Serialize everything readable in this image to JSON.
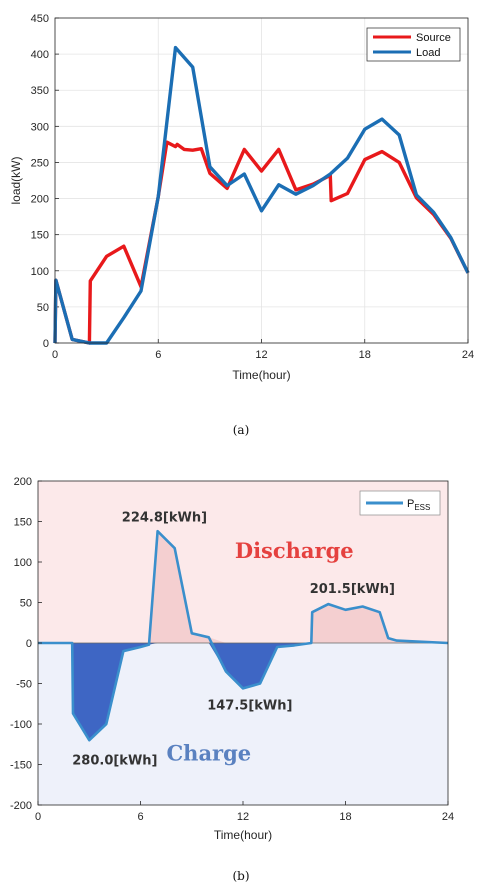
{
  "chart_data": [
    {
      "type": "line",
      "title": "",
      "xlabel": "Time(hour)",
      "ylabel": "load(kW)",
      "xlim": [
        0,
        24
      ],
      "ylim": [
        0,
        450
      ],
      "xticks": [
        "0",
        "6",
        "12",
        "18",
        "24"
      ],
      "yticks": [
        "0",
        "50",
        "100",
        "150",
        "200",
        "250",
        "300",
        "350",
        "400",
        "450"
      ],
      "grid": true,
      "legend": "top-right",
      "caption": "(a)",
      "series": [
        {
          "name": "Source",
          "color": "#e8191b",
          "x": [
            0,
            0.05,
            1,
            2,
            2.05,
            3,
            4,
            5,
            6,
            6.5,
            7,
            7.1,
            7.5,
            8,
            8.5,
            9,
            10,
            11,
            12,
            13,
            14,
            15,
            16,
            16.05,
            17,
            18,
            19,
            20,
            21,
            22,
            23,
            24
          ],
          "y": [
            0,
            87,
            5,
            0,
            86,
            120,
            134,
            78,
            203,
            278,
            272,
            275,
            268,
            267,
            269,
            235,
            214,
            268,
            238,
            268,
            212,
            220,
            232,
            197,
            207,
            254,
            265,
            250,
            201,
            178,
            145,
            97
          ]
        },
        {
          "name": "Load",
          "color": "#1b6eb4",
          "x": [
            0,
            0.05,
            1,
            2,
            3,
            4,
            5,
            6,
            7,
            8,
            9,
            10,
            11,
            12,
            13,
            14,
            15,
            16,
            17,
            18,
            19,
            20,
            21,
            22,
            23,
            24
          ],
          "y": [
            0,
            87,
            5,
            0,
            0,
            35,
            72,
            203,
            409,
            382,
            244,
            218,
            234,
            183,
            219,
            206,
            218,
            234,
            256,
            296,
            310,
            288,
            205,
            181,
            146,
            97
          ]
        }
      ]
    },
    {
      "type": "area",
      "title": "",
      "xlabel": "Time(hour)",
      "ylabel": "",
      "xlim": [
        0,
        24
      ],
      "ylim": [
        -200,
        200
      ],
      "xticks": [
        "0",
        "6",
        "12",
        "18",
        "24"
      ],
      "yticks": [
        "-200",
        "-150",
        "-100",
        "-50",
        "0",
        "50",
        "100",
        "150",
        "200"
      ],
      "grid": false,
      "legend": "top-right",
      "caption": "(b)",
      "series": [
        {
          "name": "P",
          "name_subscript": "ESS",
          "line_color": "#3a8fcc",
          "x": [
            0,
            2,
            2.05,
            3,
            4,
            5,
            6,
            6.5,
            7,
            8,
            9,
            10,
            11,
            12,
            13,
            14,
            15,
            16,
            16.05,
            17,
            18,
            19,
            20,
            20.5,
            21,
            24
          ],
          "y": [
            0,
            0,
            -87,
            -120,
            -100,
            -10,
            -5,
            -2,
            138,
            117,
            12,
            7,
            -35,
            -56,
            -50,
            -5,
            -3,
            0,
            38,
            48,
            41,
            45,
            38,
            6,
            3,
            0
          ]
        }
      ],
      "zone_colors": {
        "positive": "#fce9ea",
        "negative": "#eef1fa"
      },
      "fill_colors": {
        "positive": "#f4cfd0",
        "negative": "#3e66c4"
      },
      "zones": {
        "discharge": "Discharge",
        "charge": "Charge"
      },
      "zone_text_colors": {
        "discharge": "#e5413f",
        "charge": "#5a81c0"
      },
      "annotations": [
        {
          "text": "224.8[kWh]",
          "x": 7.4,
          "y": 150
        },
        {
          "text": "280.0[kWh]",
          "x": 4.5,
          "y": -150
        },
        {
          "text": "147.5[kWh]",
          "x": 12.4,
          "y": -82
        },
        {
          "text": "201.5[kWh]",
          "x": 18.4,
          "y": 62
        }
      ]
    }
  ]
}
